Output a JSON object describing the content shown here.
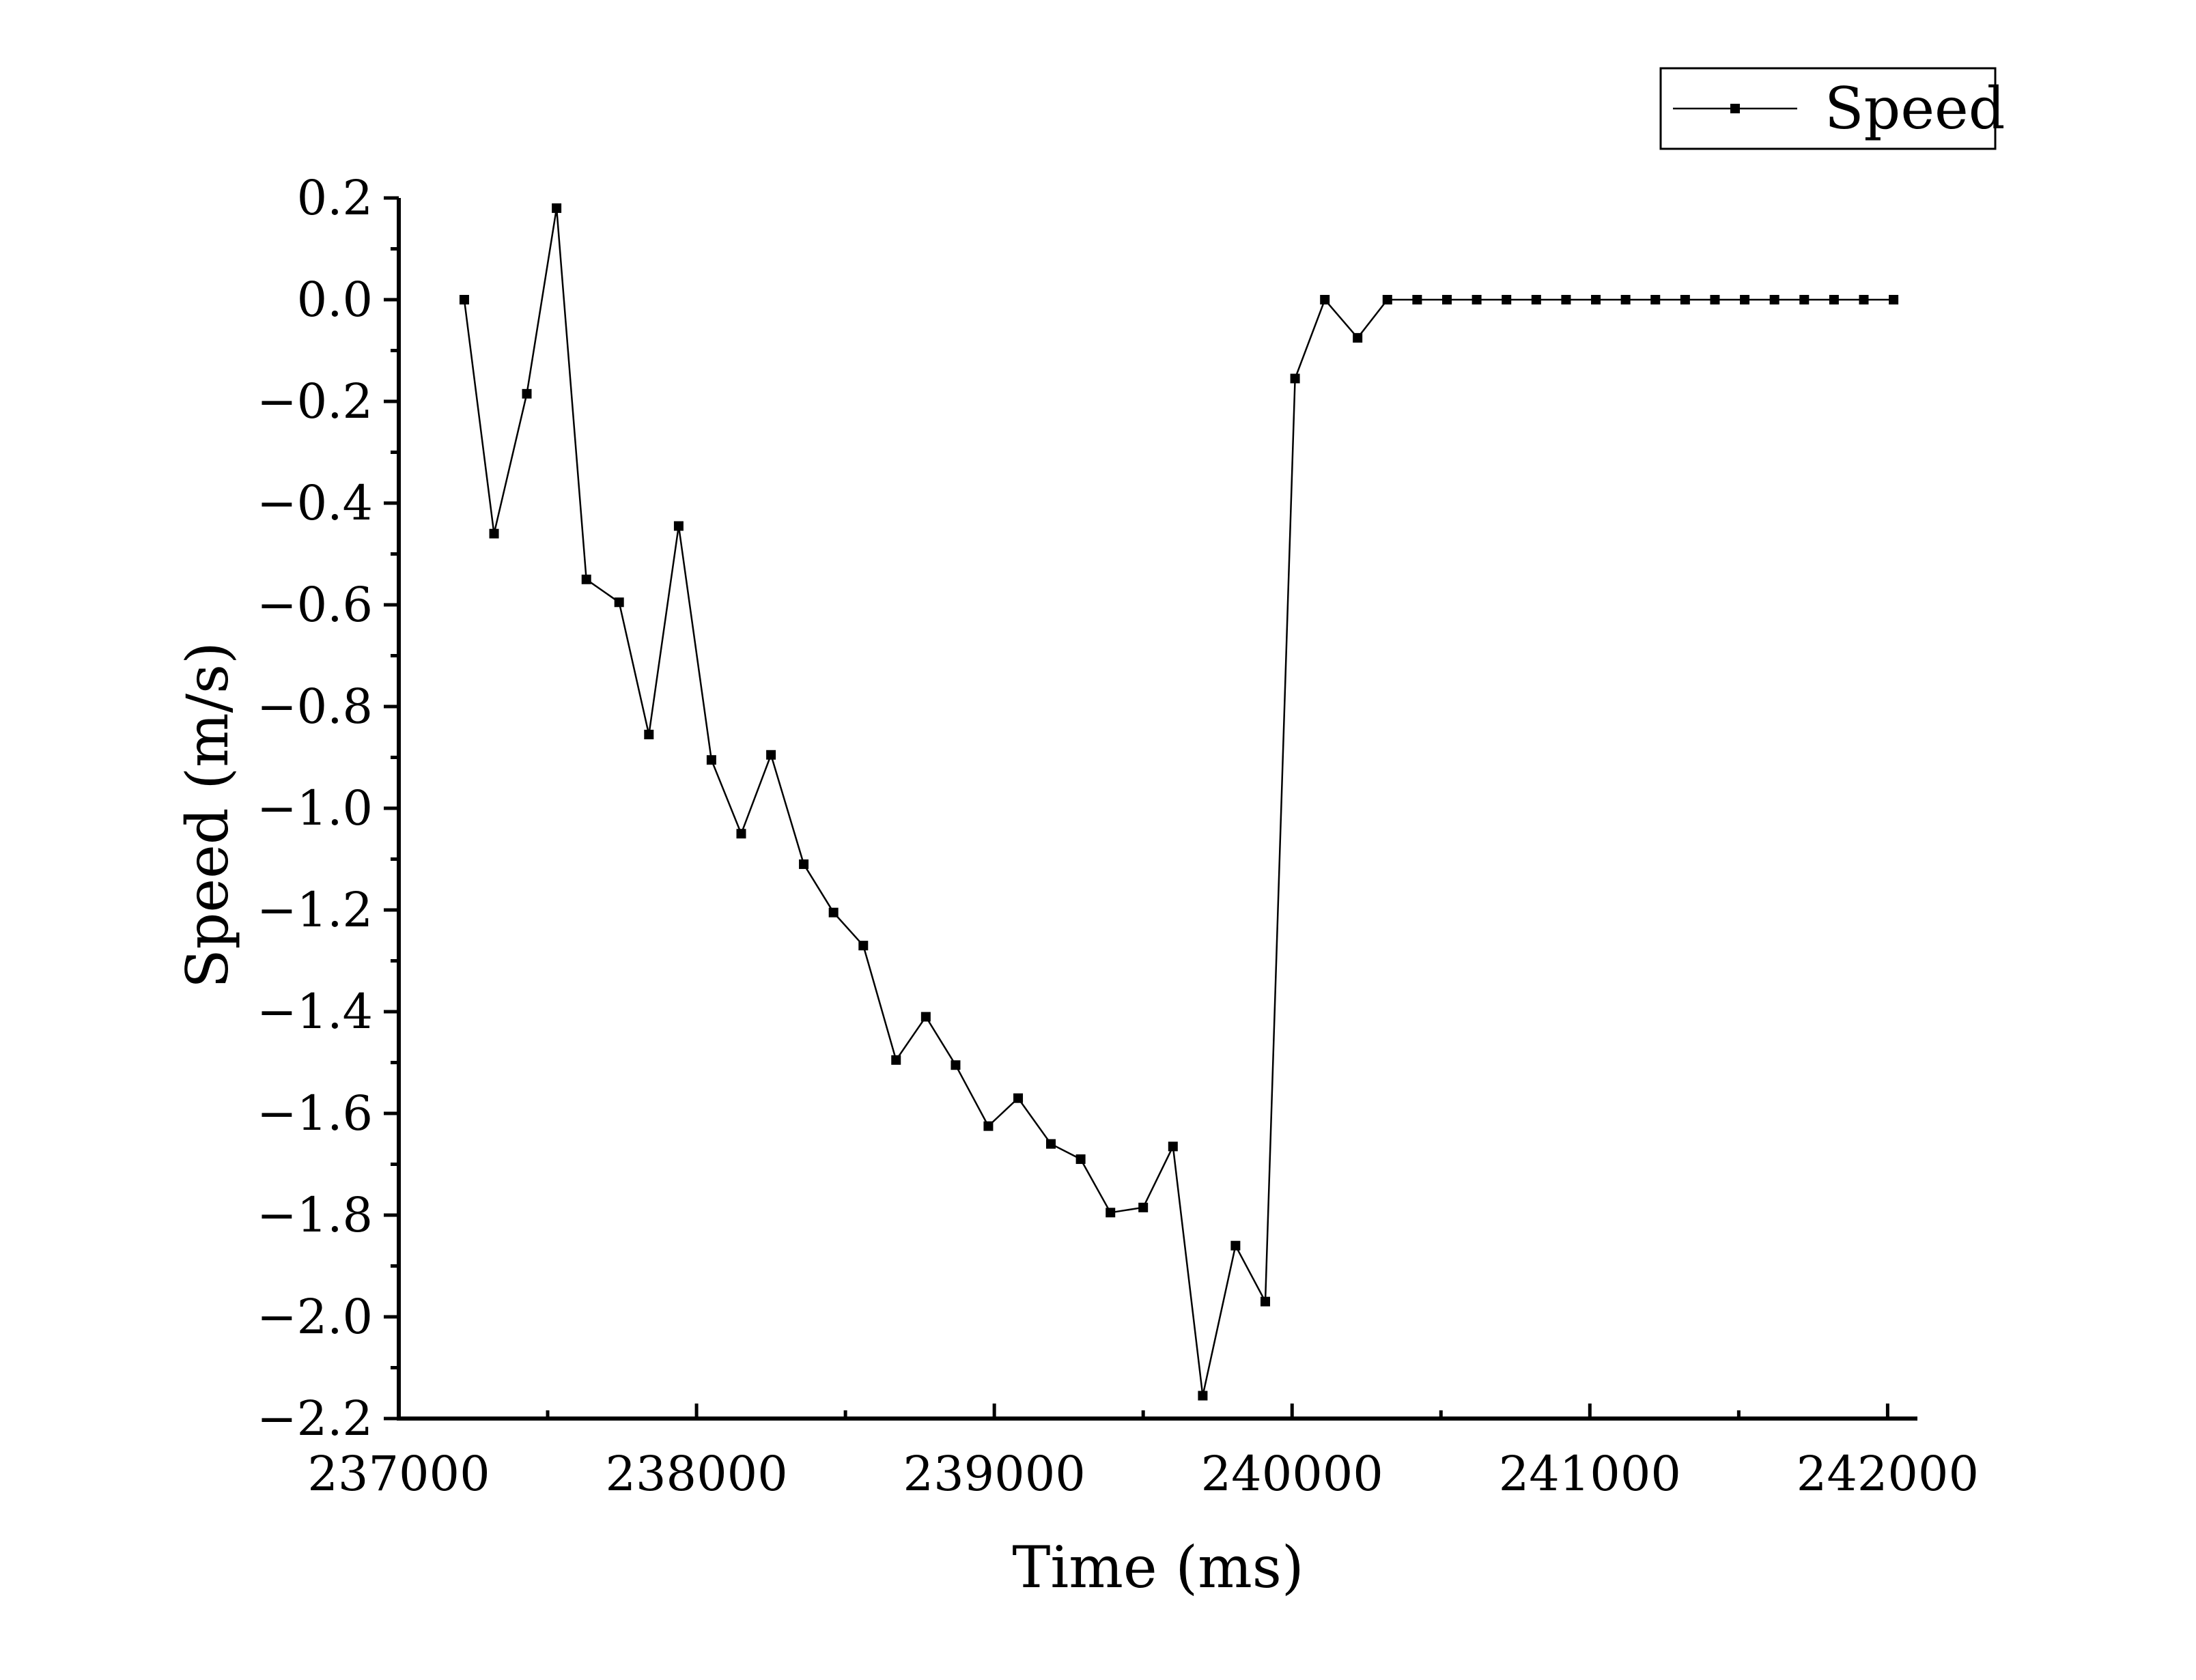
{
  "chart_data": {
    "type": "line",
    "xlabel": "Time (ms)",
    "ylabel": "Speed (m/s)",
    "xlim": [
      237000,
      242100
    ],
    "ylim": [
      -2.2,
      0.2
    ],
    "x_ticks": [
      237000,
      238000,
      239000,
      240000,
      241000,
      242000
    ],
    "x_tick_labels": [
      "237000",
      "238000",
      "239000",
      "240000",
      "241000",
      "242000"
    ],
    "x_minor_step": 500,
    "y_ticks": [
      0.2,
      0.0,
      -0.2,
      -0.4,
      -0.6,
      -0.8,
      -1.0,
      -1.2,
      -1.4,
      -1.6,
      -1.8,
      -2.0,
      -2.2
    ],
    "y_tick_labels": [
      "0.2",
      "0.0",
      "−0.2",
      "−0.4",
      "−0.6",
      "−0.8",
      "−1.0",
      "−1.2",
      "−1.4",
      "−1.6",
      "−1.8",
      "−2.0",
      "−2.2"
    ],
    "y_minor_step": 0.1,
    "grid": false,
    "legend_position": "top-right",
    "series": [
      {
        "name": "Speed",
        "color": "#000000",
        "marker": "square",
        "x": [
          237220,
          237320,
          237430,
          237530,
          237630,
          237740,
          237840,
          237940,
          238050,
          238150,
          238250,
          238360,
          238460,
          238560,
          238670,
          238770,
          238870,
          238980,
          239080,
          239190,
          239290,
          239390,
          239500,
          239600,
          239700,
          239810,
          239910,
          240010,
          240110,
          240220,
          240320,
          240420,
          240520,
          240620,
          240720,
          240820,
          240920,
          241020,
          241120,
          241220,
          241320,
          241420,
          241520,
          241620,
          241720,
          241820,
          241920,
          242020
        ],
        "y": [
          0.0,
          -0.46,
          -0.185,
          0.18,
          -0.55,
          -0.595,
          -0.855,
          -0.445,
          -0.905,
          -1.05,
          -0.895,
          -1.11,
          -1.205,
          -1.27,
          -1.495,
          -1.41,
          -1.505,
          -1.625,
          -1.57,
          -1.66,
          -1.69,
          -1.795,
          -1.785,
          -1.665,
          -2.155,
          -1.86,
          -1.97,
          -0.155,
          0.0,
          -0.075,
          0.0,
          0.0,
          0.0,
          0.0,
          0.0,
          0.0,
          0.0,
          0.0,
          0.0,
          0.0,
          0.0,
          0.0,
          0.0,
          0.0,
          0.0,
          0.0,
          0.0,
          0.0
        ]
      }
    ]
  }
}
